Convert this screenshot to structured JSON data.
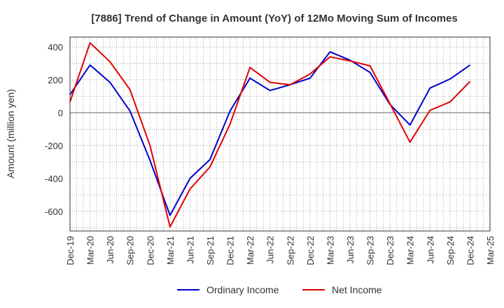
{
  "chart_data": {
    "type": "line",
    "title": "[7886]  Trend of Change in Amount (YoY) of 12Mo Moving Sum of Incomes",
    "xlabel": "",
    "ylabel": "Amount (million yen)",
    "x": [
      "Dec-19",
      "Mar-20",
      "Jun-20",
      "Sep-20",
      "Dec-20",
      "Mar-21",
      "Jun-21",
      "Sep-21",
      "Dec-21",
      "Mar-22",
      "Jun-22",
      "Sep-22",
      "Dec-22",
      "Mar-23",
      "Jun-23",
      "Sep-23",
      "Dec-23",
      "Mar-24",
      "Jun-24",
      "Sep-24",
      "Dec-24"
    ],
    "x_ticks": [
      "Dec-19",
      "Mar-20",
      "Jun-20",
      "Sep-20",
      "Dec-20",
      "Mar-21",
      "Jun-21",
      "Sep-21",
      "Dec-21",
      "Mar-22",
      "Jun-22",
      "Sep-22",
      "Dec-22",
      "Mar-23",
      "Jun-23",
      "Sep-23",
      "Dec-23",
      "Mar-24",
      "Jun-24",
      "Sep-24",
      "Dec-24",
      "Mar-25"
    ],
    "y_ticks": [
      400,
      200,
      0,
      -200,
      -400,
      -600
    ],
    "ylim": [
      -720,
      460
    ],
    "grid": true,
    "legend_position": "bottom",
    "series": [
      {
        "name": "Ordinary Income",
        "color": "#0000cc",
        "values": [
          110,
          290,
          185,
          10,
          -290,
          -625,
          -400,
          -285,
          10,
          210,
          135,
          170,
          210,
          370,
          320,
          245,
          50,
          -75,
          150,
          205,
          290
        ]
      },
      {
        "name": "Net Income",
        "color": "#e00000",
        "values": [
          65,
          425,
          310,
          140,
          -200,
          -695,
          -465,
          -330,
          -70,
          275,
          185,
          170,
          235,
          340,
          315,
          285,
          55,
          -180,
          15,
          65,
          190
        ]
      }
    ]
  }
}
